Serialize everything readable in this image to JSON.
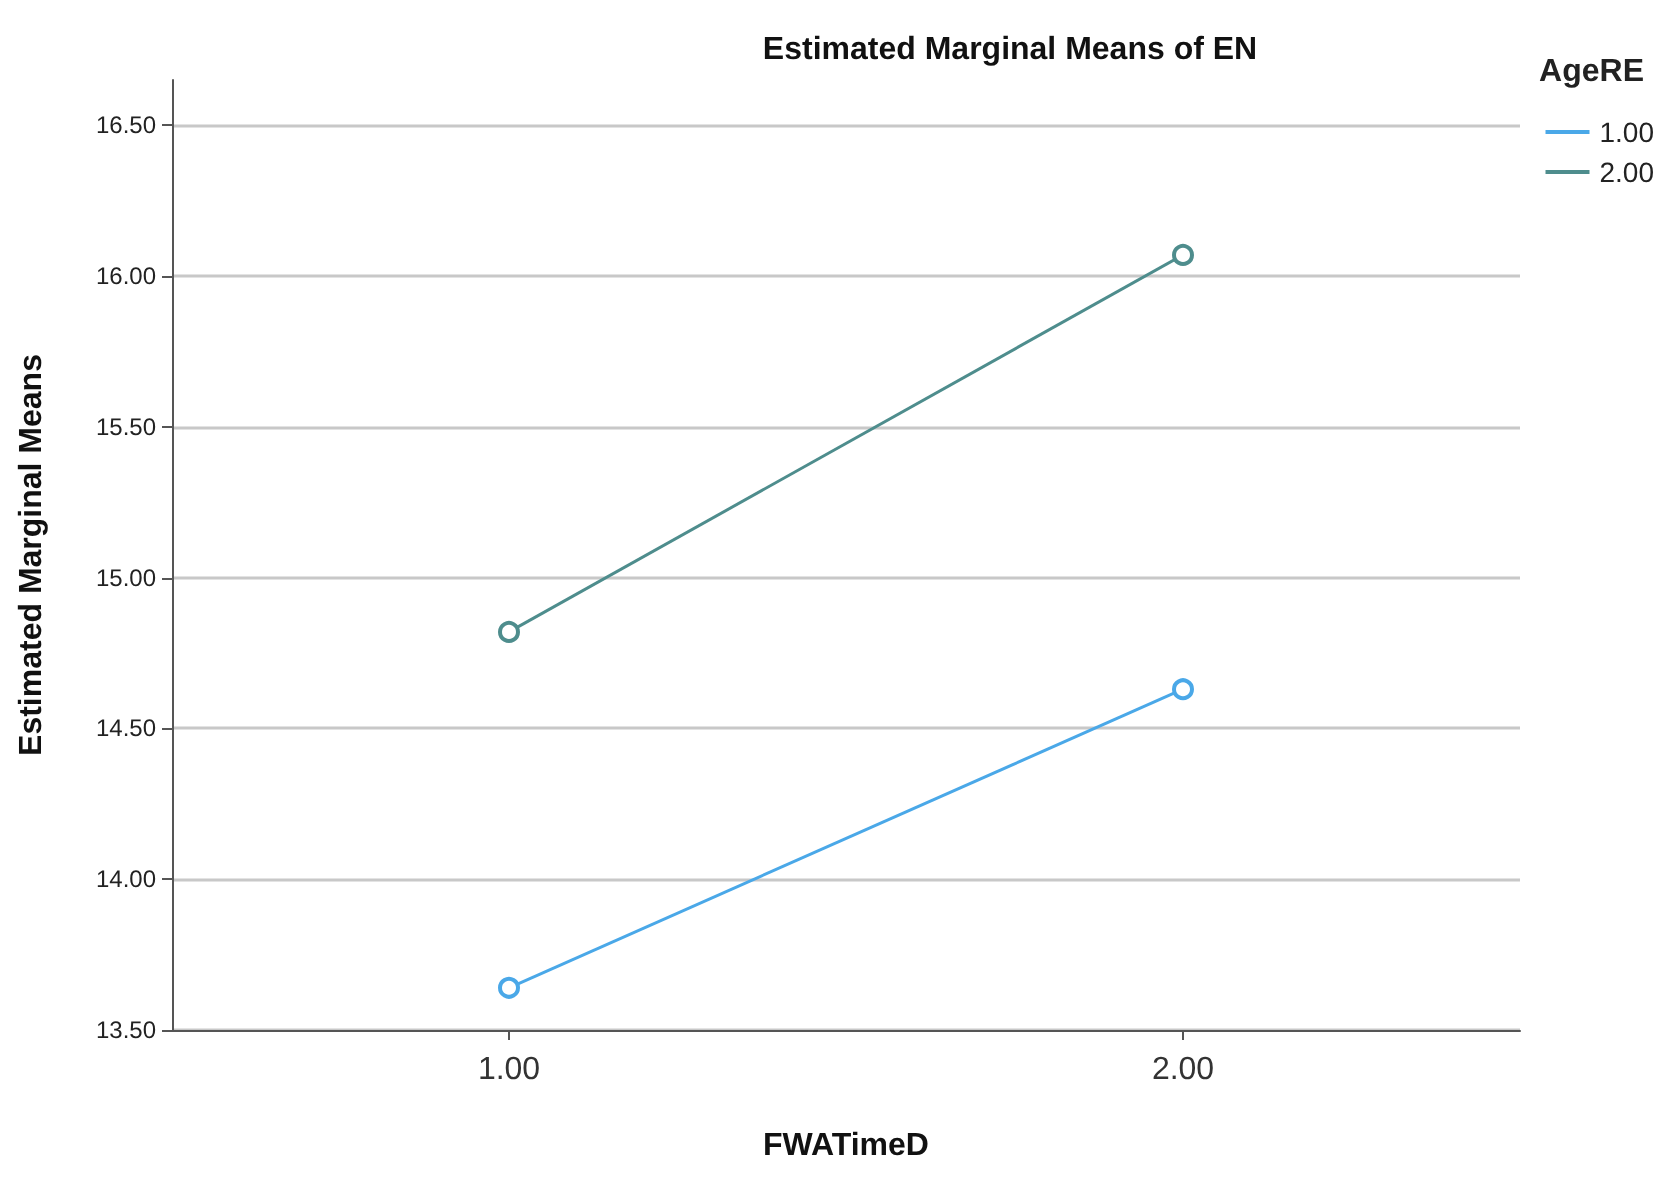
{
  "chart_data": {
    "type": "line",
    "title": "Estimated Marginal Means of EN",
    "xlabel": "FWATimeD",
    "ylabel": "Estimated Marginal Means",
    "legend_title": "AgeRE",
    "categories": [
      "1.00",
      "2.00"
    ],
    "series": [
      {
        "name": "1.00",
        "color": "#4aa8e8",
        "values": [
          13.64,
          14.63
        ]
      },
      {
        "name": "2.00",
        "color": "#4e8d8d",
        "values": [
          14.82,
          16.07
        ]
      }
    ],
    "ylim": [
      13.5,
      16.65
    ],
    "yticks": [
      {
        "value": 13.5,
        "label": "13.50"
      },
      {
        "value": 14,
        "label": "14.00"
      },
      {
        "value": 14.5,
        "label": "14.50"
      },
      {
        "value": 15,
        "label": "15.00"
      },
      {
        "value": 15.5,
        "label": "15.50"
      },
      {
        "value": 16,
        "label": "16.00"
      },
      {
        "value": 16.5,
        "label": "16.50"
      }
    ],
    "grid": "y",
    "legend": "top right",
    "marker": "circle",
    "line_style": "solid"
  }
}
